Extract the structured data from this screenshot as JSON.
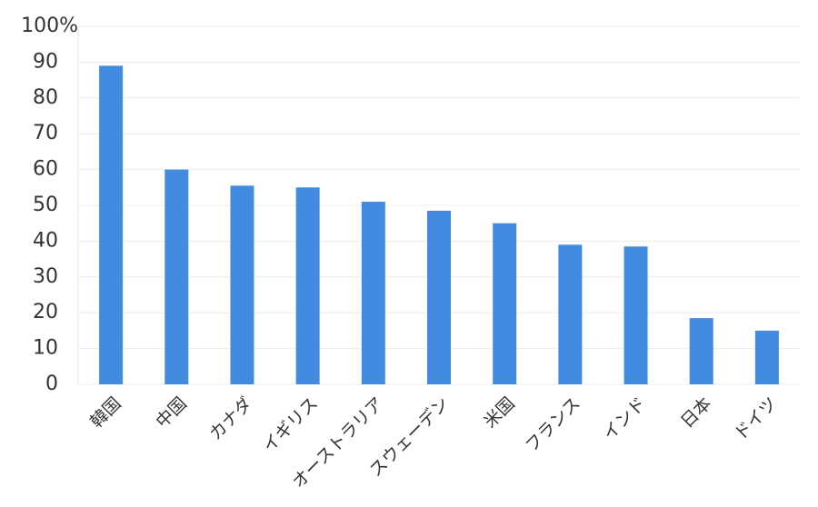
{
  "chart_data": {
    "type": "bar",
    "categories": [
      "韓国",
      "中国",
      "カナダ",
      "イギリス",
      "オーストラリア",
      "スウェーデン",
      "米国",
      "フランス",
      "インド",
      "日本",
      "ドイツ"
    ],
    "values": [
      89,
      60,
      55.5,
      55,
      51,
      48.5,
      45,
      39,
      38.5,
      18.5,
      15
    ],
    "color": "#428be0",
    "ylim": [
      0,
      100
    ],
    "yticks": [
      0,
      10,
      20,
      30,
      40,
      50,
      60,
      70,
      80,
      90,
      {
        "value": 100,
        "label": "100%"
      }
    ],
    "grid": true
  }
}
